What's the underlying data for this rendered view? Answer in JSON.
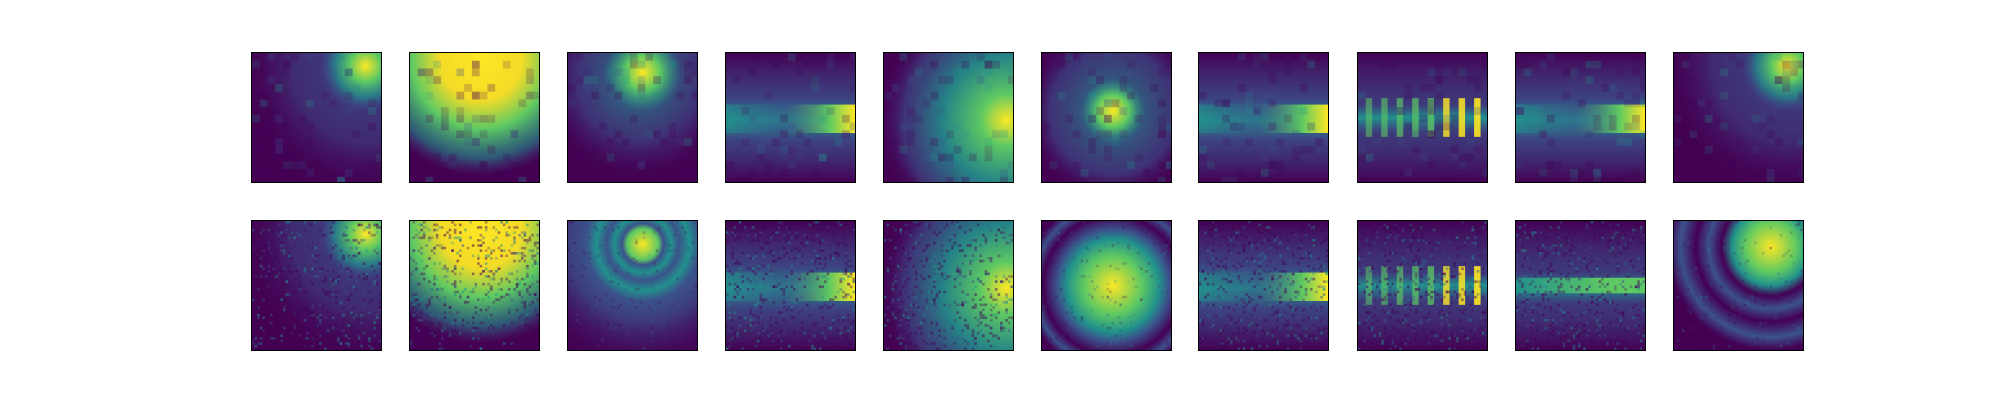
{
  "figure": {
    "rows": 2,
    "cols": 10,
    "colormap": "viridis",
    "palette": {
      "low": "#440154",
      "low_mid": "#3b528b",
      "mid": "#21918c",
      "high_mid": "#5ec962",
      "high": "#fde725",
      "frame": "#000000",
      "background": "#ffffff"
    },
    "panels": [
      {
        "row": 0,
        "col": 0,
        "pattern": "corner-glow",
        "noise": "smooth"
      },
      {
        "row": 0,
        "col": 1,
        "pattern": "broad-glow",
        "noise": "smooth"
      },
      {
        "row": 0,
        "col": 2,
        "pattern": "top-spot",
        "noise": "smooth"
      },
      {
        "row": 0,
        "col": 3,
        "pattern": "horizontal-band",
        "noise": "smooth"
      },
      {
        "row": 0,
        "col": 4,
        "pattern": "right-glow",
        "noise": "smooth"
      },
      {
        "row": 0,
        "col": 5,
        "pattern": "center-blob",
        "noise": "smooth"
      },
      {
        "row": 0,
        "col": 6,
        "pattern": "horizontal-band",
        "noise": "smooth"
      },
      {
        "row": 0,
        "col": 7,
        "pattern": "striped-band",
        "noise": "smooth"
      },
      {
        "row": 0,
        "col": 8,
        "pattern": "horizontal-band",
        "noise": "smooth"
      },
      {
        "row": 0,
        "col": 9,
        "pattern": "corner-glow",
        "noise": "smooth"
      },
      {
        "row": 1,
        "col": 0,
        "pattern": "corner-glow",
        "noise": "speckle"
      },
      {
        "row": 1,
        "col": 1,
        "pattern": "broad-glow",
        "noise": "speckle"
      },
      {
        "row": 1,
        "col": 2,
        "pattern": "rings",
        "noise": "light"
      },
      {
        "row": 1,
        "col": 3,
        "pattern": "horizontal-band",
        "noise": "speckle"
      },
      {
        "row": 1,
        "col": 4,
        "pattern": "right-glow",
        "noise": "speckle"
      },
      {
        "row": 1,
        "col": 5,
        "pattern": "center-rings",
        "noise": "light"
      },
      {
        "row": 1,
        "col": 6,
        "pattern": "horizontal-band",
        "noise": "speckle"
      },
      {
        "row": 1,
        "col": 7,
        "pattern": "striped-band",
        "noise": "speckle"
      },
      {
        "row": 1,
        "col": 8,
        "pattern": "wispy-band",
        "noise": "speckle"
      },
      {
        "row": 1,
        "col": 9,
        "pattern": "corner-rings",
        "noise": "light"
      }
    ]
  }
}
